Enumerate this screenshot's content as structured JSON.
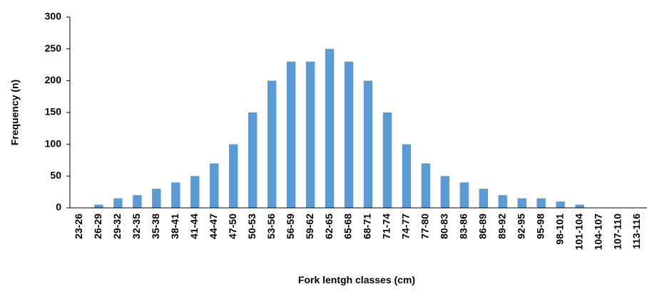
{
  "chart_data": {
    "type": "bar",
    "x_label": "Fork lentgh classes (cm)",
    "y_label": "Frequency (n)",
    "categories": [
      "23-26",
      "26-29",
      "29-32",
      "32-35",
      "35-38",
      "38-41",
      "41-44",
      "44-47",
      "47-50",
      "50-53",
      "53-56",
      "56-59",
      "59-62",
      "62-65",
      "65-68",
      "68-71",
      "71-74",
      "74-77",
      "77-80",
      "80-83",
      "83-86",
      "86-89",
      "89-92",
      "92-95",
      "95-98",
      "98-101",
      "101-104",
      "104-107",
      "107-110",
      "113-116"
    ],
    "values": [
      0,
      5,
      15,
      20,
      30,
      40,
      50,
      70,
      100,
      150,
      200,
      230,
      230,
      250,
      230,
      200,
      150,
      100,
      70,
      50,
      40,
      30,
      20,
      15,
      15,
      10,
      5,
      0,
      0,
      0
    ],
    "color": "#5b9bd5",
    "ylim": [
      0,
      300
    ],
    "yticks": [
      0,
      50,
      100,
      150,
      200,
      250,
      300
    ],
    "grid": false
  }
}
